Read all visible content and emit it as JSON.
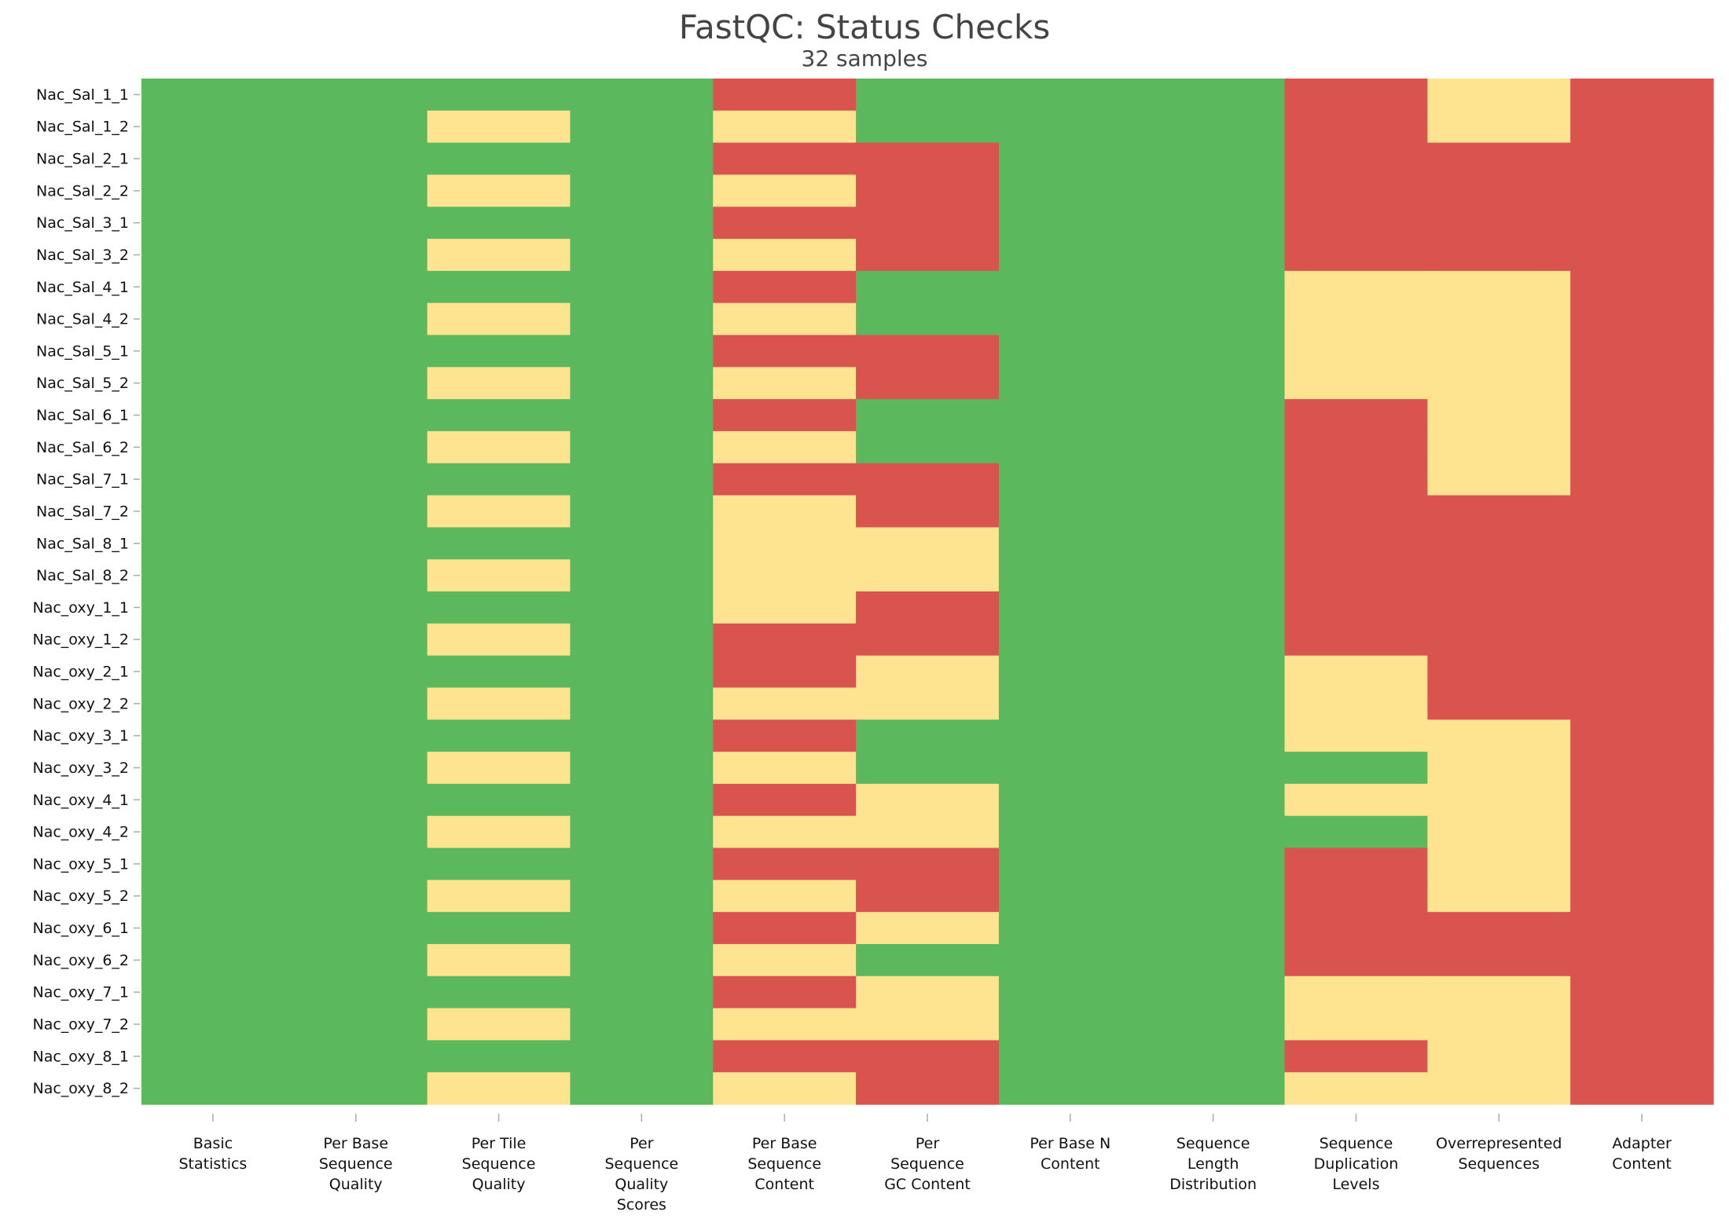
{
  "chart_data": {
    "type": "heatmap",
    "title": "FastQC: Status Checks",
    "subtitle": "32 samples",
    "x_categories": [
      [
        "Basic",
        "Statistics"
      ],
      [
        "Per Base",
        "Sequence",
        "Quality"
      ],
      [
        "Per Tile",
        "Sequence",
        "Quality"
      ],
      [
        "Per",
        "Sequence",
        "Quality",
        "Scores"
      ],
      [
        "Per Base",
        "Sequence",
        "Content"
      ],
      [
        "Per",
        "Sequence",
        "GC Content"
      ],
      [
        "Per Base N",
        "Content"
      ],
      [
        "Sequence",
        "Length",
        "Distribution"
      ],
      [
        "Sequence",
        "Duplication",
        "Levels"
      ],
      [
        "Overrepresented",
        "Sequences"
      ],
      [
        "Adapter",
        "Content"
      ]
    ],
    "y_categories": [
      "Nac_Sal_1_1",
      "Nac_Sal_1_2",
      "Nac_Sal_2_1",
      "Nac_Sal_2_2",
      "Nac_Sal_3_1",
      "Nac_Sal_3_2",
      "Nac_Sal_4_1",
      "Nac_Sal_4_2",
      "Nac_Sal_5_1",
      "Nac_Sal_5_2",
      "Nac_Sal_6_1",
      "Nac_Sal_6_2",
      "Nac_Sal_7_1",
      "Nac_Sal_7_2",
      "Nac_Sal_8_1",
      "Nac_Sal_8_2",
      "Nac_oxy_1_1",
      "Nac_oxy_1_2",
      "Nac_oxy_2_1",
      "Nac_oxy_2_2",
      "Nac_oxy_3_1",
      "Nac_oxy_3_2",
      "Nac_oxy_4_1",
      "Nac_oxy_4_2",
      "Nac_oxy_5_1",
      "Nac_oxy_5_2",
      "Nac_oxy_6_1",
      "Nac_oxy_6_2",
      "Nac_oxy_7_1",
      "Nac_oxy_7_2",
      "Nac_oxy_8_1",
      "Nac_oxy_8_2"
    ],
    "status_colors": {
      "pass": "#5cb85c",
      "warn": "#fee391",
      "fail": "#d9534f"
    },
    "values": [
      [
        "pass",
        "pass",
        "pass",
        "pass",
        "fail",
        "pass",
        "pass",
        "pass",
        "fail",
        "warn",
        "fail"
      ],
      [
        "pass",
        "pass",
        "warn",
        "pass",
        "warn",
        "pass",
        "pass",
        "pass",
        "fail",
        "warn",
        "fail"
      ],
      [
        "pass",
        "pass",
        "pass",
        "pass",
        "fail",
        "fail",
        "pass",
        "pass",
        "fail",
        "fail",
        "fail"
      ],
      [
        "pass",
        "pass",
        "warn",
        "pass",
        "warn",
        "fail",
        "pass",
        "pass",
        "fail",
        "fail",
        "fail"
      ],
      [
        "pass",
        "pass",
        "pass",
        "pass",
        "fail",
        "fail",
        "pass",
        "pass",
        "fail",
        "fail",
        "fail"
      ],
      [
        "pass",
        "pass",
        "warn",
        "pass",
        "warn",
        "fail",
        "pass",
        "pass",
        "fail",
        "fail",
        "fail"
      ],
      [
        "pass",
        "pass",
        "pass",
        "pass",
        "fail",
        "pass",
        "pass",
        "pass",
        "warn",
        "warn",
        "fail"
      ],
      [
        "pass",
        "pass",
        "warn",
        "pass",
        "warn",
        "pass",
        "pass",
        "pass",
        "warn",
        "warn",
        "fail"
      ],
      [
        "pass",
        "pass",
        "pass",
        "pass",
        "fail",
        "fail",
        "pass",
        "pass",
        "warn",
        "warn",
        "fail"
      ],
      [
        "pass",
        "pass",
        "warn",
        "pass",
        "warn",
        "fail",
        "pass",
        "pass",
        "warn",
        "warn",
        "fail"
      ],
      [
        "pass",
        "pass",
        "pass",
        "pass",
        "fail",
        "pass",
        "pass",
        "pass",
        "fail",
        "warn",
        "fail"
      ],
      [
        "pass",
        "pass",
        "warn",
        "pass",
        "warn",
        "pass",
        "pass",
        "pass",
        "fail",
        "warn",
        "fail"
      ],
      [
        "pass",
        "pass",
        "pass",
        "pass",
        "fail",
        "fail",
        "pass",
        "pass",
        "fail",
        "warn",
        "fail"
      ],
      [
        "pass",
        "pass",
        "warn",
        "pass",
        "warn",
        "fail",
        "pass",
        "pass",
        "fail",
        "fail",
        "fail"
      ],
      [
        "pass",
        "pass",
        "pass",
        "pass",
        "warn",
        "warn",
        "pass",
        "pass",
        "fail",
        "fail",
        "fail"
      ],
      [
        "pass",
        "pass",
        "warn",
        "pass",
        "warn",
        "warn",
        "pass",
        "pass",
        "fail",
        "fail",
        "fail"
      ],
      [
        "pass",
        "pass",
        "pass",
        "pass",
        "warn",
        "fail",
        "pass",
        "pass",
        "fail",
        "fail",
        "fail"
      ],
      [
        "pass",
        "pass",
        "warn",
        "pass",
        "fail",
        "fail",
        "pass",
        "pass",
        "fail",
        "fail",
        "fail"
      ],
      [
        "pass",
        "pass",
        "pass",
        "pass",
        "fail",
        "warn",
        "pass",
        "pass",
        "warn",
        "fail",
        "fail"
      ],
      [
        "pass",
        "pass",
        "warn",
        "pass",
        "warn",
        "warn",
        "pass",
        "pass",
        "warn",
        "fail",
        "fail"
      ],
      [
        "pass",
        "pass",
        "pass",
        "pass",
        "fail",
        "pass",
        "pass",
        "pass",
        "warn",
        "warn",
        "fail"
      ],
      [
        "pass",
        "pass",
        "warn",
        "pass",
        "warn",
        "pass",
        "pass",
        "pass",
        "pass",
        "warn",
        "fail"
      ],
      [
        "pass",
        "pass",
        "pass",
        "pass",
        "fail",
        "warn",
        "pass",
        "pass",
        "warn",
        "warn",
        "fail"
      ],
      [
        "pass",
        "pass",
        "warn",
        "pass",
        "warn",
        "warn",
        "pass",
        "pass",
        "pass",
        "warn",
        "fail"
      ],
      [
        "pass",
        "pass",
        "pass",
        "pass",
        "fail",
        "fail",
        "pass",
        "pass",
        "fail",
        "warn",
        "fail"
      ],
      [
        "pass",
        "pass",
        "warn",
        "pass",
        "warn",
        "fail",
        "pass",
        "pass",
        "fail",
        "warn",
        "fail"
      ],
      [
        "pass",
        "pass",
        "pass",
        "pass",
        "fail",
        "warn",
        "pass",
        "pass",
        "fail",
        "fail",
        "fail"
      ],
      [
        "pass",
        "pass",
        "warn",
        "pass",
        "warn",
        "pass",
        "pass",
        "pass",
        "fail",
        "fail",
        "fail"
      ],
      [
        "pass",
        "pass",
        "pass",
        "pass",
        "fail",
        "warn",
        "pass",
        "pass",
        "warn",
        "warn",
        "fail"
      ],
      [
        "pass",
        "pass",
        "warn",
        "pass",
        "warn",
        "warn",
        "pass",
        "pass",
        "warn",
        "warn",
        "fail"
      ],
      [
        "pass",
        "pass",
        "pass",
        "pass",
        "fail",
        "fail",
        "pass",
        "pass",
        "fail",
        "warn",
        "fail"
      ],
      [
        "pass",
        "pass",
        "warn",
        "pass",
        "warn",
        "fail",
        "pass",
        "pass",
        "warn",
        "warn",
        "fail"
      ]
    ],
    "grid": false
  }
}
